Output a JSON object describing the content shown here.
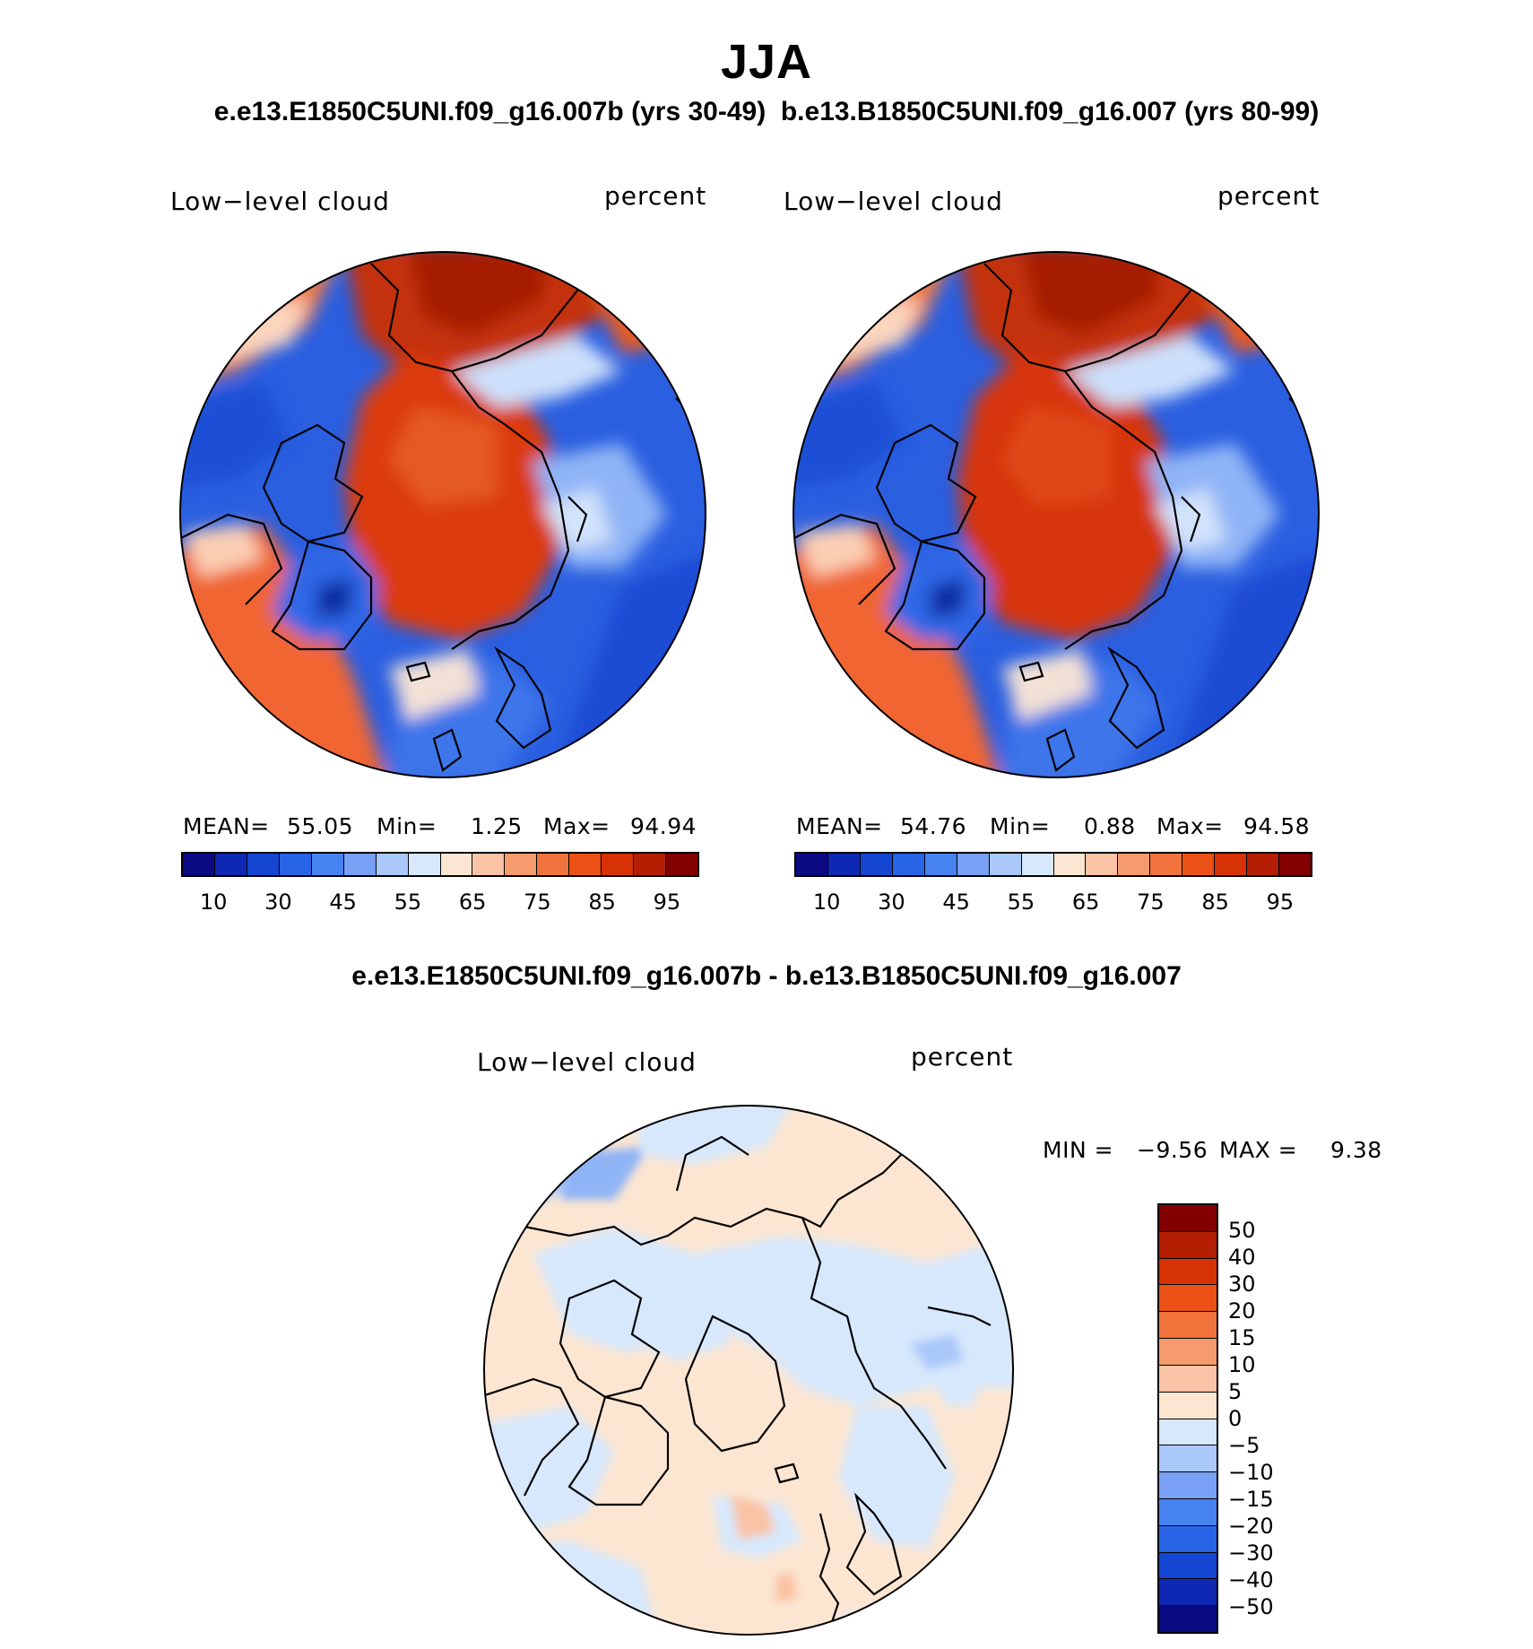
{
  "figure": {
    "season": "JJA",
    "subtitle_top": "e.e13.E1850C5UNI.f09_g16.007b (yrs 30-49)  b.e13.B1850C5UNI.f09_g16.007 (yrs 80-99)",
    "subtitle_diff": "e.e13.E1850C5UNI.f09_g16.007b - b.e13.B1850C5UNI.f09_g16.007"
  },
  "panels": [
    {
      "variable": "Low−level cloud",
      "units": "percent",
      "stats": {
        "mean_label": "MEAN=",
        "mean": "55.05",
        "min_label": "Min=",
        "min": "1.25",
        "max_label": "Max=",
        "max": "94.94"
      }
    },
    {
      "variable": "Low−level cloud",
      "units": "percent",
      "stats": {
        "mean_label": "MEAN=",
        "mean": "54.76",
        "min_label": "Min=",
        "min": "0.88",
        "max_label": "Max=",
        "max": "94.58"
      }
    }
  ],
  "diff_panel": {
    "variable": "Low−level cloud",
    "units": "percent",
    "min_label": "MIN =",
    "min": "−9.56",
    "max_label": "MAX =",
    "max": "9.38"
  },
  "colorbar_abs": {
    "colors": [
      "#0a0a82",
      "#0f28b4",
      "#1446d2",
      "#2864e6",
      "#4682f0",
      "#78a0f5",
      "#aac8fa",
      "#d7e8fc",
      "#fce6d2",
      "#fac3a5",
      "#f59b6e",
      "#f0733c",
      "#eb5014",
      "#d73205",
      "#b41e02",
      "#820000"
    ],
    "labels": [
      "10",
      "30",
      "45",
      "55",
      "65",
      "75",
      "85",
      "95"
    ]
  },
  "colorbar_diff": {
    "colors": [
      "#820000",
      "#b41e02",
      "#d73205",
      "#eb5014",
      "#f0733c",
      "#f59b6e",
      "#fac3a5",
      "#fce6d2",
      "#d7e8fc",
      "#aac8fa",
      "#78a0f5",
      "#4682f0",
      "#2864e6",
      "#1446d2",
      "#0f28b4",
      "#0a0a82"
    ],
    "labels": [
      "50",
      "40",
      "30",
      "20",
      "15",
      "10",
      "5",
      "0",
      "−5",
      "−10",
      "−15",
      "−20",
      "−30",
      "−40",
      "−50"
    ]
  }
}
